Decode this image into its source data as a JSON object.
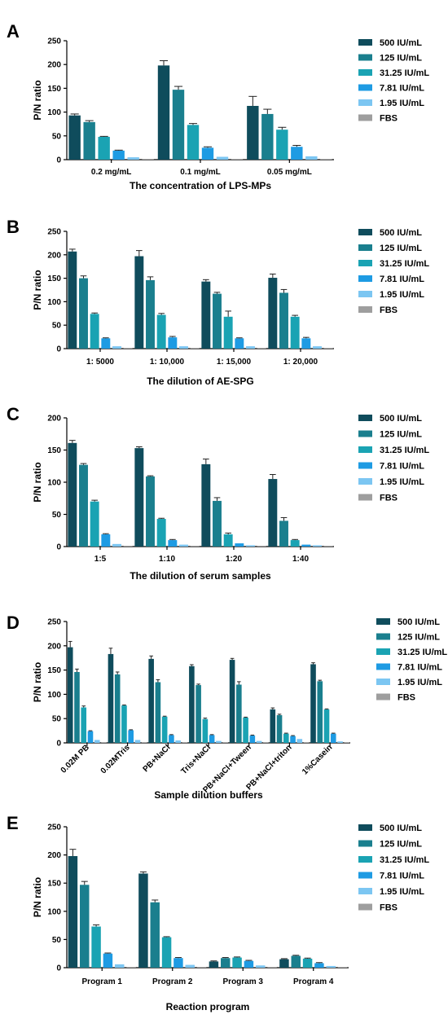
{
  "colors": {
    "500 IU/mL": "#0f4c5c",
    "125 IU/mL": "#1a7f8e",
    "31.25 IU/mL": "#1aa3b3",
    "7.81 IU/mL": "#1e9be3",
    "1.95 IU/mL": "#7cc6f2",
    "FBS": "#9e9e9e"
  },
  "chart_data": [
    {
      "panel": "A",
      "type": "bar",
      "xlabel": "The concentration of LPS-MPs",
      "ylabel": "P/N ratio",
      "ylim": [
        0,
        250
      ],
      "yticks": [
        0,
        50,
        100,
        150,
        200,
        250
      ],
      "categories": [
        "0.2 mg/mL",
        "0.1 mg/mL",
        "0.05 mg/mL"
      ],
      "legend": "right",
      "series": [
        {
          "name": "500 IU/mL",
          "values": [
            93,
            198,
            113
          ],
          "errors": [
            3,
            10,
            20
          ]
        },
        {
          "name": "125 IU/mL",
          "values": [
            79,
            147,
            96
          ],
          "errors": [
            3,
            7,
            10
          ]
        },
        {
          "name": "31.25 IU/mL",
          "values": [
            48,
            73,
            63
          ],
          "errors": [
            1,
            3,
            5
          ]
        },
        {
          "name": "7.81 IU/mL",
          "values": [
            19,
            25,
            27
          ],
          "errors": [
            1,
            2,
            3
          ]
        },
        {
          "name": "1.95 IU/mL",
          "values": [
            5,
            6,
            7
          ],
          "errors": [
            0.5,
            0.5,
            0.5
          ]
        },
        {
          "name": "FBS",
          "values": [
            1,
            1,
            1
          ],
          "errors": [
            0,
            0,
            0
          ]
        }
      ]
    },
    {
      "panel": "B",
      "type": "bar",
      "xlabel": "The dilution of AE-SPG",
      "ylabel": "P/N ratio",
      "ylim": [
        0,
        250
      ],
      "yticks": [
        0,
        50,
        100,
        150,
        200,
        250
      ],
      "categories": [
        "1: 5000",
        "1: 10,000",
        "1: 15,000",
        "1: 20,000"
      ],
      "legend": "right",
      "series": [
        {
          "name": "500 IU/mL",
          "values": [
            207,
            197,
            143,
            151
          ],
          "errors": [
            5,
            12,
            4,
            8
          ]
        },
        {
          "name": "125 IU/mL",
          "values": [
            150,
            146,
            117,
            119
          ],
          "errors": [
            5,
            7,
            3,
            7
          ]
        },
        {
          "name": "31.25 IU/mL",
          "values": [
            74,
            72,
            68,
            68
          ],
          "errors": [
            2,
            3,
            12,
            3
          ]
        },
        {
          "name": "7.81 IU/mL",
          "values": [
            22,
            24,
            22,
            22
          ],
          "errors": [
            1,
            2,
            1,
            2
          ]
        },
        {
          "name": "1.95 IU/mL",
          "values": [
            5,
            5,
            5,
            5
          ],
          "errors": [
            0.5,
            0.5,
            0.5,
            0.5
          ]
        },
        {
          "name": "FBS",
          "values": [
            1,
            1,
            1,
            1
          ],
          "errors": [
            0,
            0,
            0,
            0
          ]
        }
      ]
    },
    {
      "panel": "C",
      "type": "bar",
      "xlabel": "The dilution of serum samples",
      "ylabel": "P/N ratio",
      "ylim": [
        0,
        200
      ],
      "yticks": [
        0,
        50,
        100,
        150,
        200
      ],
      "categories": [
        "1:5",
        "1:10",
        "1:20",
        "1:40"
      ],
      "legend": "right",
      "series": [
        {
          "name": "500 IU/mL",
          "values": [
            161,
            153,
            128,
            105
          ],
          "errors": [
            4,
            2,
            8,
            7
          ]
        },
        {
          "name": "125 IU/mL",
          "values": [
            127,
            109,
            71,
            40
          ],
          "errors": [
            2,
            1,
            5,
            5
          ]
        },
        {
          "name": "31.25 IU/mL",
          "values": [
            70,
            43,
            19,
            10
          ],
          "errors": [
            2,
            1,
            2,
            1
          ]
        },
        {
          "name": "7.81 IU/mL",
          "values": [
            19,
            10,
            5,
            3
          ],
          "errors": [
            1,
            1,
            0.5,
            0.5
          ]
        },
        {
          "name": "1.95 IU/mL",
          "values": [
            4,
            3,
            2,
            2
          ],
          "errors": [
            0.5,
            0.5,
            0.5,
            0.5
          ]
        },
        {
          "name": "FBS",
          "values": [
            1,
            1,
            1,
            1
          ],
          "errors": [
            0,
            0,
            0,
            0
          ]
        }
      ]
    },
    {
      "panel": "D",
      "type": "bar",
      "xlabel": "Sample dilution buffers",
      "ylabel": "P/N ratio",
      "ylim": [
        0,
        250
      ],
      "yticks": [
        0,
        50,
        100,
        150,
        200,
        250
      ],
      "categories": [
        "0.02M PB",
        "0.02MTris",
        "PB+NaCl",
        "Tris+NaCl",
        "PB+NaCl+Tween",
        "PB+NaCl+triton",
        "1%Casein"
      ],
      "legend": "right",
      "series": [
        {
          "name": "500 IU/mL",
          "values": [
            197,
            183,
            173,
            158,
            171,
            69,
            162
          ],
          "errors": [
            12,
            12,
            6,
            3,
            3,
            3,
            3
          ]
        },
        {
          "name": "125 IU/mL",
          "values": [
            146,
            141,
            125,
            119,
            120,
            57,
            127
          ],
          "errors": [
            6,
            5,
            5,
            2,
            6,
            2,
            2
          ]
        },
        {
          "name": "31.25 IU/mL",
          "values": [
            73,
            77,
            54,
            49,
            52,
            19,
            69
          ],
          "errors": [
            3,
            1,
            1,
            2,
            1,
            1,
            1
          ]
        },
        {
          "name": "7.81 IU/mL",
          "values": [
            24,
            26,
            16,
            16,
            15,
            14,
            19
          ],
          "errors": [
            1,
            1,
            1,
            1,
            1,
            1,
            1
          ]
        },
        {
          "name": "1.95 IU/mL",
          "values": [
            6,
            6,
            5,
            4,
            4,
            8,
            3
          ],
          "errors": [
            0.5,
            0.5,
            0.5,
            0.5,
            0.5,
            0.5,
            0.5
          ]
        },
        {
          "name": "FBS",
          "values": [
            1,
            1,
            1,
            1,
            1,
            1,
            1
          ],
          "errors": [
            0,
            0,
            0,
            0,
            0,
            0,
            0
          ]
        }
      ]
    },
    {
      "panel": "E",
      "type": "bar",
      "xlabel": "Reaction program",
      "ylabel": "P/N ratio",
      "ylim": [
        0,
        250
      ],
      "yticks": [
        0,
        50,
        100,
        150,
        200,
        250
      ],
      "categories": [
        "Program 1",
        "Program 2",
        "Program 3",
        "Program 4"
      ],
      "legend": "right",
      "series": [
        {
          "name": "500 IU/mL",
          "values": [
            198,
            167,
            11,
            15
          ],
          "errors": [
            12,
            3,
            1,
            1
          ]
        },
        {
          "name": "125 IU/mL",
          "values": [
            147,
            116,
            17,
            21
          ],
          "errors": [
            6,
            4,
            1,
            1
          ]
        },
        {
          "name": "31.25 IU/mL",
          "values": [
            73,
            54,
            18,
            16
          ],
          "errors": [
            3,
            1,
            1,
            1
          ]
        },
        {
          "name": "7.81 IU/mL",
          "values": [
            25,
            17,
            12,
            8
          ],
          "errors": [
            1,
            1,
            1,
            1
          ]
        },
        {
          "name": "1.95 IU/mL",
          "values": [
            6,
            5,
            4,
            3
          ],
          "errors": [
            0.5,
            0.5,
            0.5,
            0.5
          ]
        },
        {
          "name": "FBS",
          "values": [
            1,
            1,
            1,
            1
          ],
          "errors": [
            0,
            0,
            0,
            0
          ]
        }
      ]
    }
  ]
}
